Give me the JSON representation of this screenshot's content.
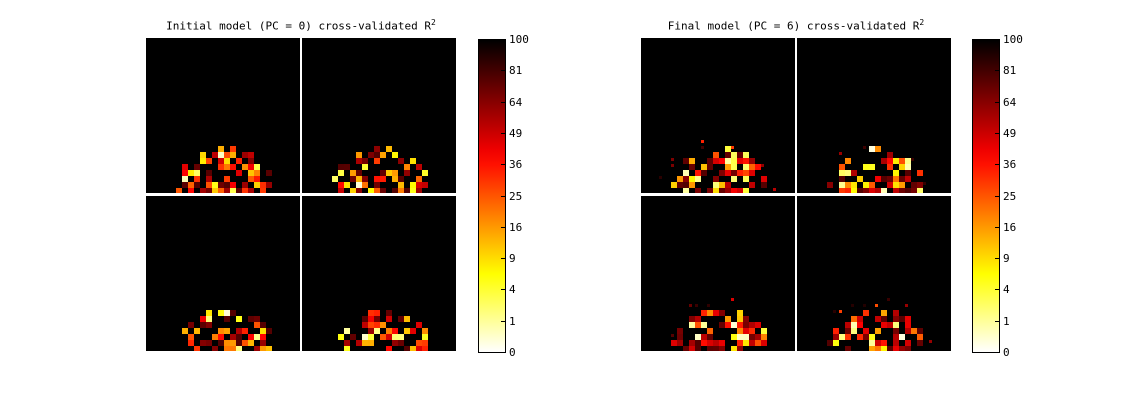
{
  "chart_data": [
    {
      "type": "heatmap",
      "title": "Initial model (PC = 0) cross-validated R",
      "title_superscript": "2",
      "slices": 4,
      "colormap": "hot",
      "colorbar": {
        "ticks": [
          "100",
          "81",
          "64",
          "49",
          "36",
          "25",
          "16",
          "9",
          "4",
          "1",
          "0"
        ],
        "range": [
          0,
          100
        ]
      },
      "extent": "compact",
      "seed": 11
    },
    {
      "type": "heatmap",
      "title": "Final model (PC = 6) cross-validated R",
      "title_superscript": "2",
      "slices": 4,
      "colormap": "hot",
      "colorbar": {
        "ticks": [
          "100",
          "81",
          "64",
          "49",
          "36",
          "25",
          "16",
          "9",
          "4",
          "1",
          "0"
        ],
        "range": [
          0,
          100
        ]
      },
      "extent": "diffuse",
      "seed": 23
    }
  ]
}
